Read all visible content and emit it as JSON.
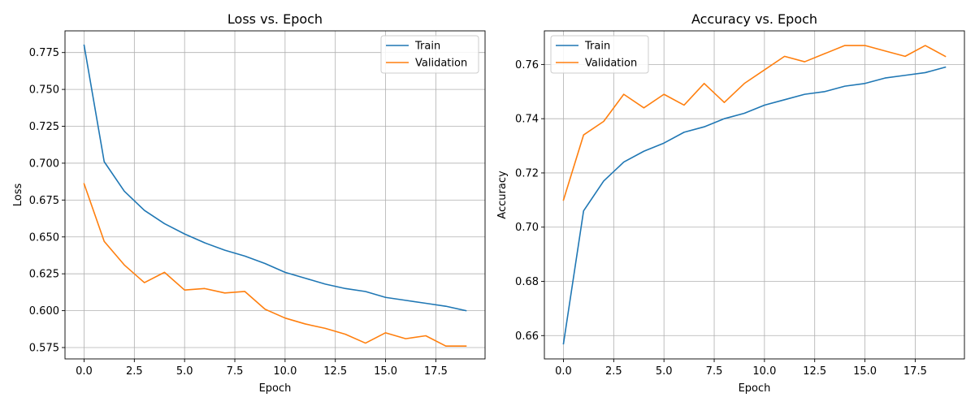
{
  "chart_data": [
    {
      "type": "line",
      "title": "Loss vs. Epoch",
      "xlabel": "Epoch",
      "ylabel": "Loss",
      "x": [
        0,
        1,
        2,
        3,
        4,
        5,
        6,
        7,
        8,
        9,
        10,
        11,
        12,
        13,
        14,
        15,
        16,
        17,
        18,
        19
      ],
      "xlim": [
        -0.95,
        19.95
      ],
      "ylim": [
        0.5673,
        0.7897
      ],
      "xticks": [
        0,
        2.5,
        5,
        7.5,
        10,
        12.5,
        15,
        17.5
      ],
      "xtick_labels": [
        "0.0",
        "2.5",
        "5.0",
        "7.5",
        "10.0",
        "12.5",
        "15.0",
        "17.5"
      ],
      "yticks": [
        0.575,
        0.6,
        0.625,
        0.65,
        0.675,
        0.7,
        0.725,
        0.75,
        0.775
      ],
      "ytick_labels": [
        "0.575",
        "0.600",
        "0.625",
        "0.650",
        "0.675",
        "0.700",
        "0.725",
        "0.750",
        "0.775"
      ],
      "grid": true,
      "legend_position": "top-right",
      "series": [
        {
          "name": "Train",
          "color": "#1f77b4",
          "values": [
            0.78,
            0.701,
            0.681,
            0.668,
            0.659,
            0.652,
            0.646,
            0.641,
            0.637,
            0.632,
            0.626,
            0.622,
            0.618,
            0.615,
            0.613,
            0.609,
            0.607,
            0.605,
            0.603,
            0.6
          ]
        },
        {
          "name": "Validation",
          "color": "#ff7f0e",
          "values": [
            0.686,
            0.647,
            0.631,
            0.619,
            0.626,
            0.614,
            0.615,
            0.612,
            0.613,
            0.601,
            0.595,
            0.591,
            0.588,
            0.584,
            0.578,
            0.585,
            0.581,
            0.583,
            0.576,
            0.576
          ]
        }
      ]
    },
    {
      "type": "line",
      "title": "Accuracy vs. Epoch",
      "xlabel": "Epoch",
      "ylabel": "Accuracy",
      "x": [
        0,
        1,
        2,
        3,
        4,
        5,
        6,
        7,
        8,
        9,
        10,
        11,
        12,
        13,
        14,
        15,
        16,
        17,
        18,
        19
      ],
      "xlim": [
        -0.95,
        19.95
      ],
      "ylim": [
        0.6514,
        0.7724
      ],
      "xticks": [
        0,
        2.5,
        5,
        7.5,
        10,
        12.5,
        15,
        17.5
      ],
      "xtick_labels": [
        "0.0",
        "2.5",
        "5.0",
        "7.5",
        "10.0",
        "12.5",
        "15.0",
        "17.5"
      ],
      "yticks": [
        0.66,
        0.68,
        0.7,
        0.72,
        0.74,
        0.76
      ],
      "ytick_labels": [
        "0.66",
        "0.68",
        "0.70",
        "0.72",
        "0.74",
        "0.76"
      ],
      "grid": true,
      "legend_position": "top-left",
      "series": [
        {
          "name": "Train",
          "color": "#1f77b4",
          "values": [
            0.657,
            0.706,
            0.717,
            0.724,
            0.728,
            0.731,
            0.735,
            0.737,
            0.74,
            0.742,
            0.745,
            0.747,
            0.749,
            0.75,
            0.752,
            0.753,
            0.755,
            0.756,
            0.757,
            0.759
          ]
        },
        {
          "name": "Validation",
          "color": "#ff7f0e",
          "values": [
            0.71,
            0.734,
            0.739,
            0.749,
            0.744,
            0.749,
            0.745,
            0.753,
            0.746,
            0.753,
            0.758,
            0.763,
            0.761,
            0.764,
            0.767,
            0.767,
            0.765,
            0.763,
            0.767,
            0.763
          ]
        }
      ]
    }
  ]
}
